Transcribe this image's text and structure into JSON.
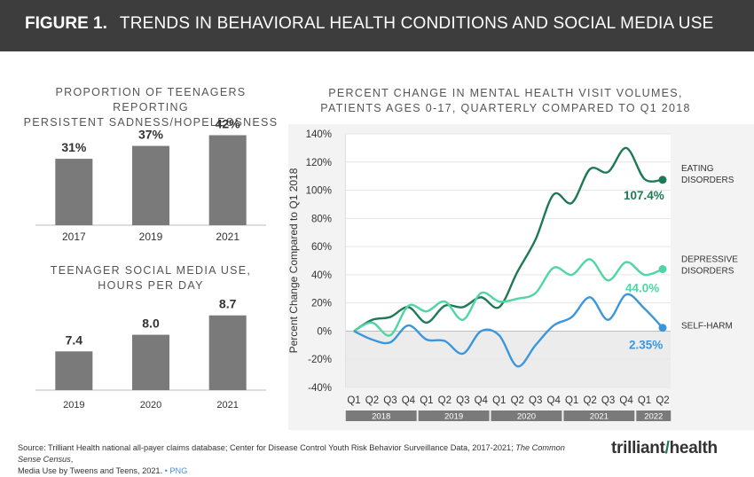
{
  "header": {
    "figure_label": "FIGURE 1.",
    "title": "TRENDS IN BEHAVIORAL HEALTH CONDITIONS AND SOCIAL MEDIA USE"
  },
  "colors": {
    "header_bg": "#3d3d3d",
    "bar": "#7a7a7a",
    "eating": "#1e7a55",
    "depressive": "#4fd6a4",
    "selfharm": "#3a97dd",
    "panel_bg": "#f3f3f3"
  },
  "footer": {
    "source_line1_pre": "Source: Trilliant Health national all-payer claims database; Center for Disease Control Youth Risk Behavior Surveillance Data, 2017-2021; ",
    "source_italic": "The Common Sense Census",
    "source_line1_post": ",",
    "source_line2": "Media Use by Tweens and Teens, 2021. ",
    "png_link": "• PNG"
  },
  "logo": {
    "text_a": "trilliant",
    "text_b": "health"
  },
  "chart_data": [
    {
      "type": "bar",
      "title_lines": [
        "PROPORTION OF TEENAGERS REPORTING",
        "PERSISTENT SADNESS/HOPELESSNESS"
      ],
      "categories": [
        "2017",
        "2019",
        "2021"
      ],
      "values": [
        31,
        37,
        42
      ],
      "labels": [
        "31%",
        "37%",
        "42%"
      ],
      "ylim": [
        0,
        48
      ]
    },
    {
      "type": "bar",
      "title_lines": [
        "TEENAGER SOCIAL MEDIA USE,",
        "HOURS PER DAY"
      ],
      "categories": [
        "2019",
        "2020",
        "2021"
      ],
      "values": [
        7.4,
        8.0,
        8.7
      ],
      "labels": [
        "7.4",
        "8.0",
        "8.7"
      ],
      "ylim": [
        6.0,
        9.3
      ]
    },
    {
      "type": "line",
      "title_lines": [
        "PERCENT CHANGE IN MENTAL HEALTH VISIT VOLUMES,",
        "PATIENTS AGES 0-17, QUARTERLY COMPARED TO Q1 2018"
      ],
      "ylabel": "Percent Change Compared to Q1 2018",
      "ylim": [
        -40,
        140
      ],
      "yticks": [
        -40,
        -20,
        0,
        20,
        40,
        60,
        80,
        100,
        120,
        140
      ],
      "ytick_labels": [
        "-40%",
        "-20%",
        "0%",
        "20%",
        "40%",
        "60%",
        "80%",
        "100%",
        "120%",
        "140%"
      ],
      "x_labels": [
        "Q1",
        "Q2",
        "Q3",
        "Q4",
        "Q1",
        "Q2",
        "Q3",
        "Q4",
        "Q1",
        "Q2",
        "Q3",
        "Q4",
        "Q1",
        "Q2",
        "Q3",
        "Q4",
        "Q1",
        "Q2"
      ],
      "years": [
        {
          "label": "2018",
          "start": 0,
          "end": 3
        },
        {
          "label": "2019",
          "start": 4,
          "end": 7
        },
        {
          "label": "2020",
          "start": 8,
          "end": 11
        },
        {
          "label": "2021",
          "start": 12,
          "end": 15
        },
        {
          "label": "2022",
          "start": 16,
          "end": 17
        }
      ],
      "series": [
        {
          "name": "EATING DISORDERS",
          "name_lines": [
            "EATING",
            "DISORDERS"
          ],
          "end_label": "107.4%",
          "color": "#1e7a55",
          "values": [
            0,
            8,
            10,
            17,
            6,
            18,
            17,
            24,
            17,
            42,
            65,
            97,
            91,
            115,
            113,
            130,
            108,
            107.4
          ]
        },
        {
          "name": "DEPRESSIVE DISORDERS",
          "name_lines": [
            "DEPRESSIVE",
            "DISORDERS"
          ],
          "end_label": "44.0%",
          "color": "#4fd6a4",
          "values": [
            0,
            6,
            -3,
            18,
            14,
            21,
            8,
            27,
            21,
            23,
            27,
            45,
            40,
            51,
            36,
            49,
            40,
            44.0
          ]
        },
        {
          "name": "SELF-HARM",
          "name_lines": [
            "SELF-HARM"
          ],
          "end_label": "2.35%",
          "color": "#3a97dd",
          "values": [
            0,
            -6,
            -8,
            4,
            -6,
            -7,
            -16,
            0,
            -3,
            -25,
            -10,
            4,
            10,
            24,
            8,
            26,
            16,
            2.35
          ]
        }
      ]
    }
  ]
}
